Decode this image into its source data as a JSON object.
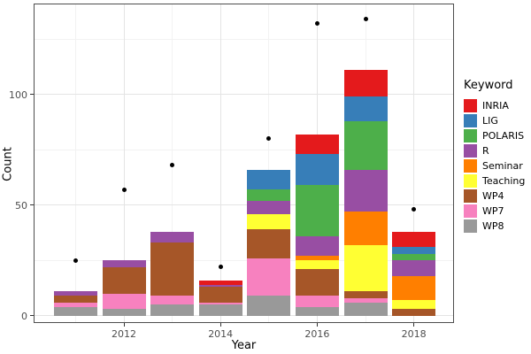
{
  "chart_data": {
    "type": "bar",
    "subtype": "stacked-bars-with-scatter-points",
    "title": "",
    "xlabel": "Year",
    "ylabel": "Count",
    "legend_title": "Keyword",
    "legend_position": "right",
    "grid": true,
    "colors": {
      "background": "#FFFFFF",
      "panel_border": "#4D4D4D",
      "grid_major": "#E4E4E4",
      "grid_minor": "#F2F2F2",
      "tick_text": "#4D4D4D",
      "point": "#000000"
    },
    "categories": [
      2011,
      2012,
      2013,
      2014,
      2015,
      2016,
      2017,
      2018
    ],
    "x_major_ticks": [
      2012,
      2014,
      2016,
      2018
    ],
    "y_major_ticks": [
      0,
      50,
      100
    ],
    "y_minor_ticks": [
      25,
      75,
      125
    ],
    "ylim": [
      -3.5,
      141
    ],
    "series": [
      {
        "name": "INRIA",
        "color": "#E41A1C",
        "values": [
          0,
          0,
          0,
          2,
          0,
          9,
          12,
          7
        ]
      },
      {
        "name": "LIG",
        "color": "#377EB8",
        "values": [
          0,
          0,
          0,
          0,
          9,
          14,
          11,
          3
        ]
      },
      {
        "name": "POLARIS",
        "color": "#4DAF4A",
        "values": [
          0,
          0,
          0,
          0,
          5,
          23,
          22,
          3
        ]
      },
      {
        "name": "R",
        "color": "#984EA3",
        "values": [
          2,
          3,
          5,
          1,
          6,
          9,
          19,
          7
        ]
      },
      {
        "name": "Seminar",
        "color": "#FF7F00",
        "values": [
          0,
          0,
          0,
          0,
          0,
          2,
          15,
          11
        ]
      },
      {
        "name": "Teaching",
        "color": "#FFFF33",
        "values": [
          0,
          0,
          0,
          0,
          7,
          4,
          21,
          4
        ]
      },
      {
        "name": "WP4",
        "color": "#A65628",
        "values": [
          3,
          12,
          24,
          7,
          13,
          12,
          3,
          3
        ]
      },
      {
        "name": "WP7",
        "color": "#F781BF",
        "values": [
          2,
          7,
          4,
          1,
          17,
          5,
          2,
          0
        ]
      },
      {
        "name": "WP8",
        "color": "#999999",
        "values": [
          4,
          3,
          5,
          5,
          9,
          4,
          6,
          0
        ]
      }
    ],
    "points": {
      "color": "#000000",
      "values": [
        25,
        57,
        68,
        22,
        80,
        132,
        134,
        48
      ]
    }
  }
}
